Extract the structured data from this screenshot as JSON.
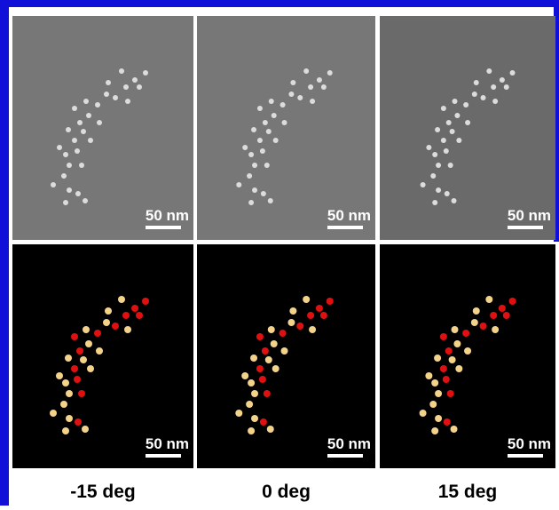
{
  "panels": [
    {
      "label": "-15 deg",
      "sem_scale": "50 nm",
      "model_scale": "50 nm"
    },
    {
      "label": "0 deg",
      "sem_scale": "50 nm",
      "model_scale": "50 nm"
    },
    {
      "label": "15 deg",
      "sem_scale": "50 nm",
      "model_scale": "50 nm"
    }
  ]
}
